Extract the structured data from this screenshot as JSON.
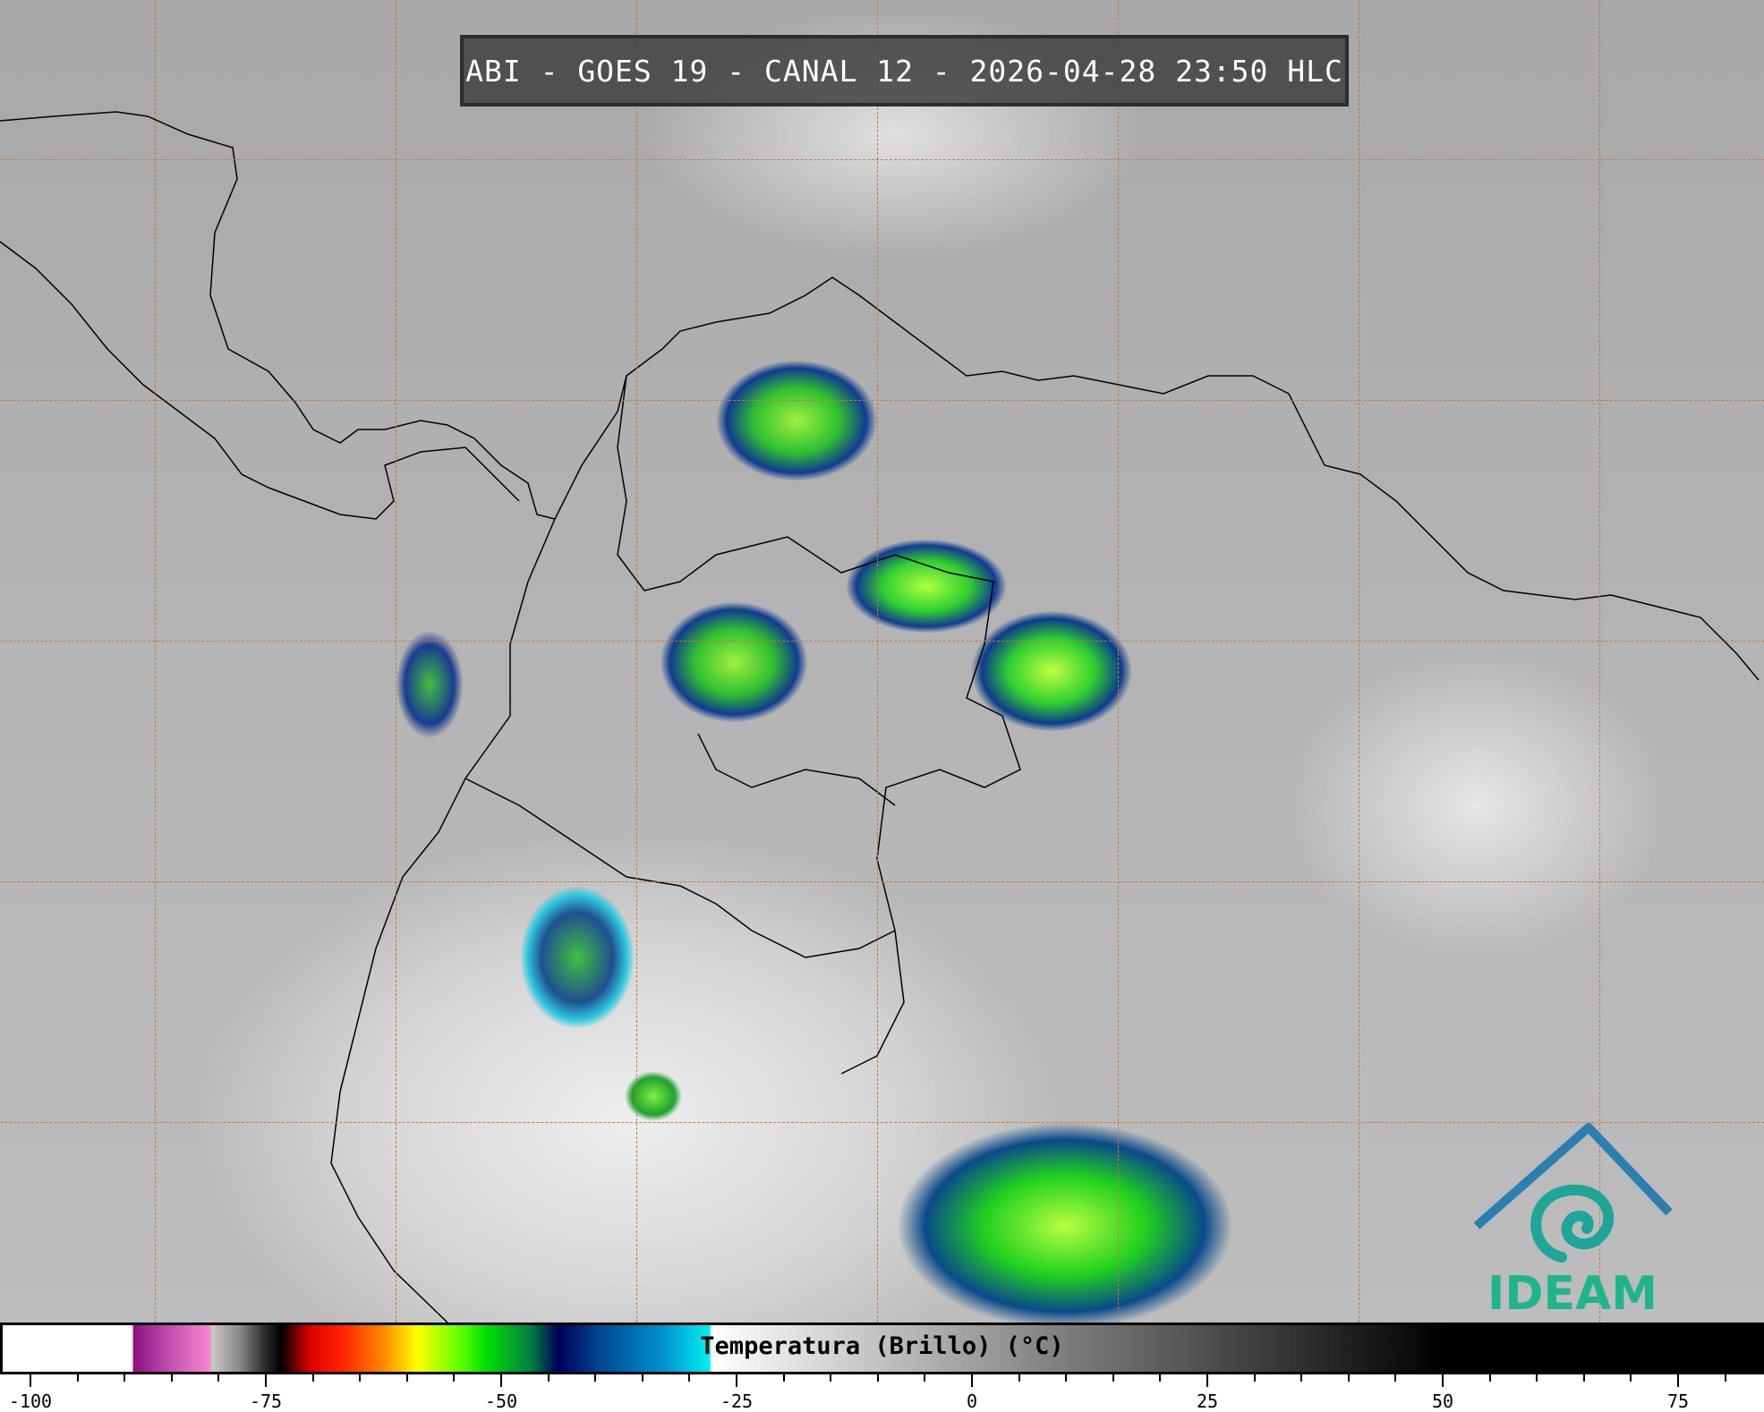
{
  "title": "ABI - GOES 19 - CANAL 12 - 2026-04-28 23:50 HLC",
  "colorbar": {
    "label": "Temperatura (Brillo) (°C)",
    "min": -103,
    "max": 84,
    "major_ticks": [
      "-100",
      "-75",
      "-50",
      "-25",
      "0",
      "25",
      "50",
      "75"
    ],
    "minor_step": 5
  },
  "logo": {
    "text": "IDEAM",
    "color": "#1fb58a",
    "roof_color": "#2a7fb0"
  },
  "gridline_color": "#c8773a"
}
